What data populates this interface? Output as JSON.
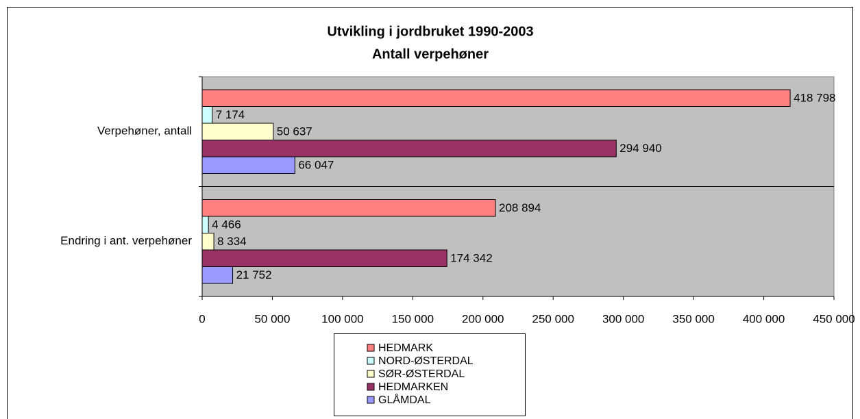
{
  "chart_data": {
    "type": "hbar",
    "title": "Utvikling i jordbruket 1990-2003",
    "subtitle": "Antall verpehøner",
    "categories": [
      "Verpehøner, antall",
      "Endring i ant. verpehøner"
    ],
    "series": [
      {
        "name": "HEDMARK",
        "color": "#ff8080",
        "values": [
          418798,
          208894
        ],
        "value_labels": [
          "418 798",
          "208 894"
        ]
      },
      {
        "name": "NORD-ØSTERDAL",
        "color": "#ccffff",
        "values": [
          7174,
          4466
        ],
        "value_labels": [
          "7 174",
          "4 466"
        ]
      },
      {
        "name": "SØR-ØSTERDAL",
        "color": "#ffffcc",
        "values": [
          50637,
          8334
        ],
        "value_labels": [
          "50 637",
          "8 334"
        ]
      },
      {
        "name": "HEDMARKEN",
        "color": "#993366",
        "values": [
          294940,
          174342
        ],
        "value_labels": [
          "294 940",
          "174 342"
        ]
      },
      {
        "name": "GLÅMDAL",
        "color": "#9999ff",
        "values": [
          66047,
          21752
        ],
        "value_labels": [
          "66 047",
          "21 752"
        ]
      }
    ],
    "xlim": [
      0,
      450000
    ],
    "xticks": [
      0,
      {
        "value": 50000,
        "label": "50 000"
      },
      {
        "value": 100000,
        "label": "100 000"
      },
      {
        "value": 150000,
        "label": "150 000"
      },
      {
        "value": 200000,
        "label": "200 000"
      },
      {
        "value": 250000,
        "label": "250 000"
      },
      {
        "value": 300000,
        "label": "300 000"
      },
      {
        "value": 350000,
        "label": "350 000"
      },
      {
        "value": 400000,
        "label": "400 000"
      },
      {
        "value": 450000,
        "label": "450 000"
      }
    ],
    "legend": "bottom",
    "plot_background": "#c0c0c0"
  }
}
